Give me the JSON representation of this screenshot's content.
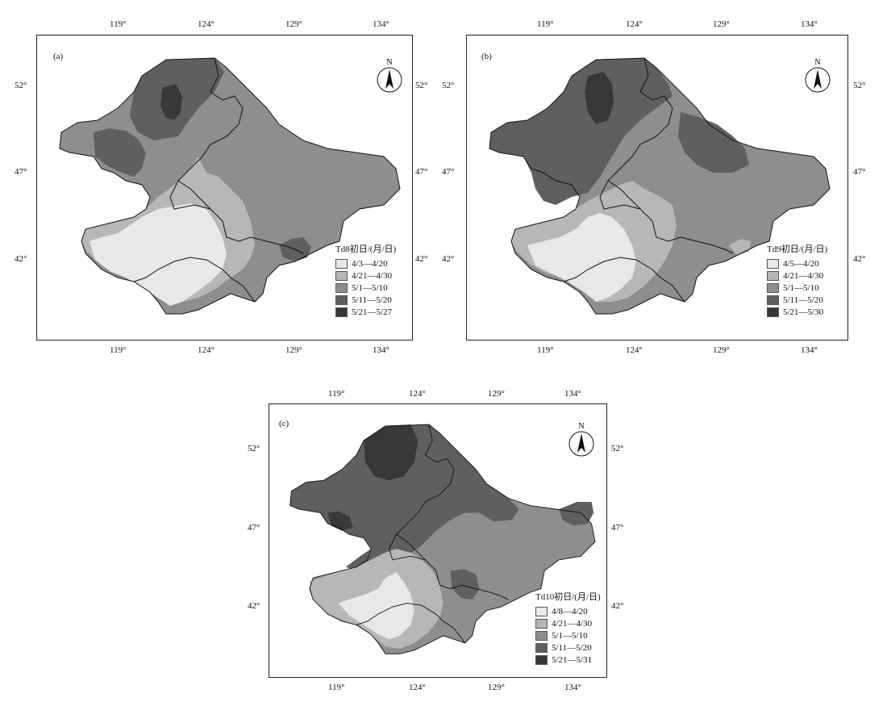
{
  "colors": {
    "class1": "#e8e8e8",
    "class2": "#b7b7b7",
    "class3": "#8e8e8e",
    "class4": "#5f5f5f",
    "class5": "#383838",
    "boundary": "#111111"
  },
  "panels": [
    {
      "tag": "(a)",
      "legend_title": "Td8初日/(月/日)",
      "legend": [
        "4/3—4/20",
        "4/21—4/30",
        "5/1—5/10",
        "5/11—5/20",
        "5/21—5/27"
      ],
      "lon_ticks": [
        "119°",
        "124°",
        "129°",
        "134°"
      ],
      "lat_ticks": [
        "52°",
        "47°",
        "42°"
      ],
      "compass_label": "N"
    },
    {
      "tag": "(b)",
      "legend_title": "Td9初日/(月/日)",
      "legend": [
        "4/5—4/20",
        "4/21—4/30",
        "5/1—5/10",
        "5/11—5/20",
        "5/21—5/30"
      ],
      "lon_ticks": [
        "119°",
        "124°",
        "129°",
        "134°"
      ],
      "lat_ticks": [
        "52°",
        "47°",
        "42°"
      ],
      "compass_label": "N"
    },
    {
      "tag": "(c)",
      "legend_title": "Td10初日/(月/日)",
      "legend": [
        "4/8—4/20",
        "4/21—4/30",
        "5/1—5/10",
        "5/11—5/20",
        "5/21—5/31"
      ],
      "lon_ticks": [
        "119°",
        "124°",
        "129°",
        "134°"
      ],
      "lat_ticks": [
        "52°",
        "47°",
        "42°"
      ],
      "compass_label": "N"
    }
  ]
}
